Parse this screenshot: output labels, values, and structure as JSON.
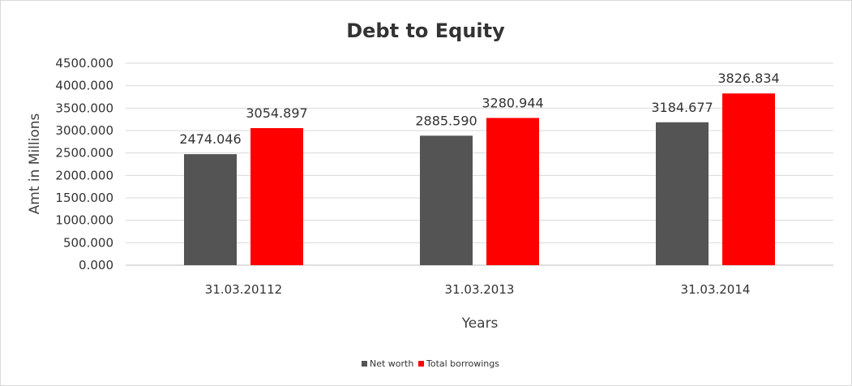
{
  "chart_data": {
    "type": "bar",
    "title": "Debt to Equity",
    "xlabel": "Years",
    "ylabel": "Amt in Millions",
    "categories": [
      "31.03.20112",
      "31.03.2013",
      "31.03.2014"
    ],
    "series": [
      {
        "name": "Net worth",
        "color": "#545454",
        "values": [
          2474.046,
          2885.59,
          3184.677
        ],
        "labels": [
          "2474.046",
          "2885.590",
          "3184.677"
        ]
      },
      {
        "name": "Total borrowings",
        "color": "#ff0000",
        "values": [
          3054.897,
          3280.944,
          3826.834
        ],
        "labels": [
          "3054.897",
          "3280.944",
          "3826.834"
        ]
      }
    ],
    "ylim": [
      0,
      4500
    ],
    "yticks": [
      {
        "value": 0,
        "label": "0.000"
      },
      {
        "value": 500,
        "label": "500.000"
      },
      {
        "value": 1000,
        "label": "1000.000"
      },
      {
        "value": 1500,
        "label": "1500.000"
      },
      {
        "value": 2000,
        "label": "2000.000"
      },
      {
        "value": 2500,
        "label": "2500.000"
      },
      {
        "value": 3000,
        "label": "3000.000"
      },
      {
        "value": 3500,
        "label": "3500.000"
      },
      {
        "value": 4000,
        "label": "4000.000"
      },
      {
        "value": 4500,
        "label": "4500.000"
      }
    ],
    "grid": true,
    "legend_position": "bottom-center"
  }
}
